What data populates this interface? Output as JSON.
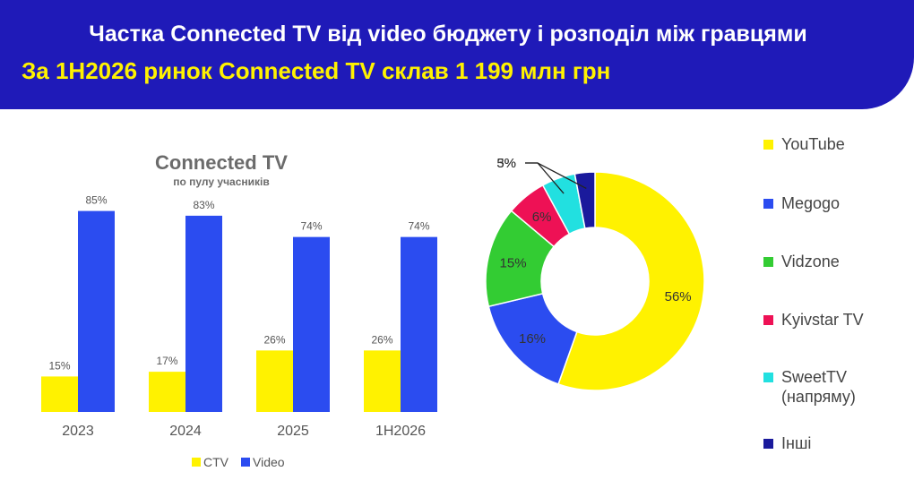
{
  "header": {
    "title": "Частка Connected TV від video бюджету і розподіл між гравцями",
    "subtitle": "За 1H2026 ринок Connected TV склав 1 199 млн грн"
  },
  "colors": {
    "header_bg": "#1f1ab8",
    "subtitle": "#fff200",
    "ctv": "#fff200",
    "video": "#2b4cf0"
  },
  "chart_data": [
    {
      "type": "bar",
      "title": "Connected TV",
      "subtitle": "по пулу учасників",
      "categories": [
        "2023",
        "2024",
        "2025",
        "1H2026"
      ],
      "series": [
        {
          "name": "CTV",
          "values": [
            15,
            17,
            26,
            26
          ],
          "labels": [
            "15%",
            "17%",
            "26%",
            "26%"
          ],
          "color": "#fff200"
        },
        {
          "name": "Video",
          "values": [
            85,
            83,
            74,
            74
          ],
          "labels": [
            "85%",
            "83%",
            "74%",
            "74%"
          ],
          "color": "#2b4cf0"
        }
      ],
      "ylim": [
        0,
        100
      ],
      "grid": false,
      "legend_position": "bottom"
    },
    {
      "type": "pie",
      "donut": true,
      "slices": [
        {
          "name": "YouTube",
          "value": 56,
          "label": "56%",
          "color": "#fff200"
        },
        {
          "name": "Megogo",
          "value": 16,
          "label": "16%",
          "color": "#2b4cf0"
        },
        {
          "name": "Vidzone",
          "value": 15,
          "label": "15%",
          "color": "#33cc33"
        },
        {
          "name": "Kyivstar TV",
          "value": 6,
          "label": "6%",
          "color": "#ee1155"
        },
        {
          "name": "SweetTV (напряму)",
          "value": 5,
          "label": "5%",
          "color": "#22e0e0"
        },
        {
          "name": "Інші",
          "value": 3,
          "label": "3%",
          "color": "#1a1a9c"
        }
      ],
      "legend_position": "right"
    }
  ]
}
